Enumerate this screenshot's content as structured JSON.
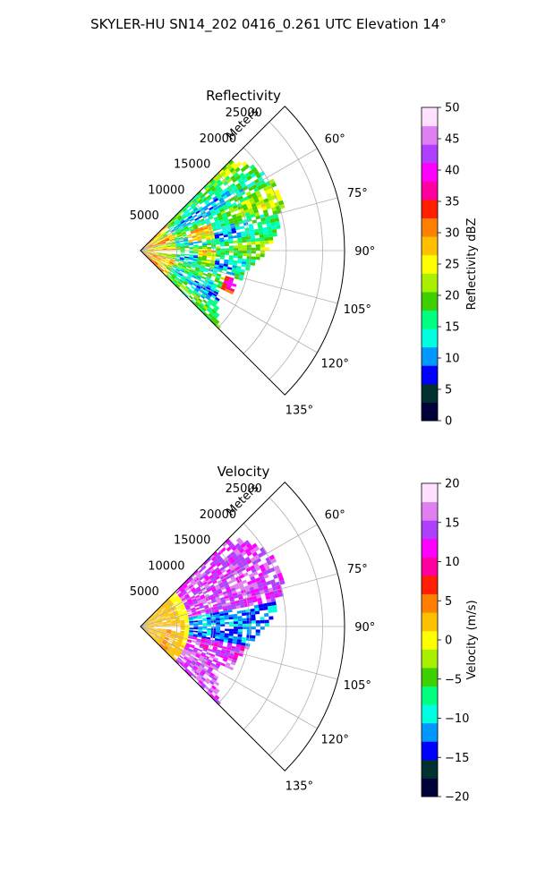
{
  "figure": {
    "suptitle": "SKYLER-HU  SN14_202  0416_0.261 UTC Elevation 14°"
  },
  "chart_data": [
    {
      "type": "heatmap",
      "projection": "polar",
      "title": "Reflectivity",
      "range_label": "Meters",
      "range_ticks": [
        5000,
        10000,
        15000,
        20000,
        25000
      ],
      "range_lim": [
        0,
        28000
      ],
      "azimuth_lim_deg": [
        45,
        135
      ],
      "azimuth_ticks_deg": [
        60,
        75,
        90,
        105,
        120,
        135
      ],
      "azimuth_tick_labels": [
        "60°",
        "75°",
        "90°",
        "105°",
        "120°",
        "135°"
      ],
      "grid": true,
      "colorbar": {
        "label": "Reflectivity dBZ",
        "vmin": 0,
        "vmax": 50,
        "ticks": [
          0,
          5,
          10,
          15,
          20,
          25,
          30,
          35,
          40,
          45,
          50
        ],
        "tick_labels": [
          "0",
          "5",
          "10",
          "15",
          "20",
          "25",
          "30",
          "35",
          "40",
          "45",
          "50"
        ],
        "colormap": [
          "#00003a",
          "#003030",
          "#0000ff",
          "#0098ff",
          "#00ffe0",
          "#00ff80",
          "#3fd000",
          "#a8f000",
          "#ffff00",
          "#ffc000",
          "#ff8000",
          "#ff2000",
          "#ff00a0",
          "#ff00ff",
          "#b040ff",
          "#e080f0",
          "#ffe0ff"
        ]
      }
    },
    {
      "type": "heatmap",
      "projection": "polar",
      "title": "Velocity",
      "range_label": "Meters",
      "range_ticks": [
        5000,
        10000,
        15000,
        20000,
        25000
      ],
      "range_lim": [
        0,
        28000
      ],
      "azimuth_lim_deg": [
        45,
        135
      ],
      "azimuth_ticks_deg": [
        60,
        75,
        90,
        105,
        120,
        135
      ],
      "azimuth_tick_labels": [
        "60°",
        "75°",
        "90°",
        "105°",
        "120°",
        "135°"
      ],
      "grid": true,
      "colorbar": {
        "label": "Velocity (m/s)",
        "vmin": -20,
        "vmax": 20,
        "ticks": [
          -20,
          -15,
          -10,
          -5,
          0,
          5,
          10,
          15,
          20
        ],
        "tick_labels": [
          "−20",
          "−15",
          "−10",
          "−5",
          "0",
          "5",
          "10",
          "15",
          "20"
        ],
        "colormap": [
          "#00003a",
          "#003030",
          "#0000ff",
          "#0098ff",
          "#00ffe0",
          "#00ff80",
          "#3fd000",
          "#a8f000",
          "#ffff00",
          "#ffc000",
          "#ff8000",
          "#ff2000",
          "#ff00a0",
          "#ff00ff",
          "#b040ff",
          "#e080f0",
          "#ffe0ff"
        ]
      }
    }
  ]
}
